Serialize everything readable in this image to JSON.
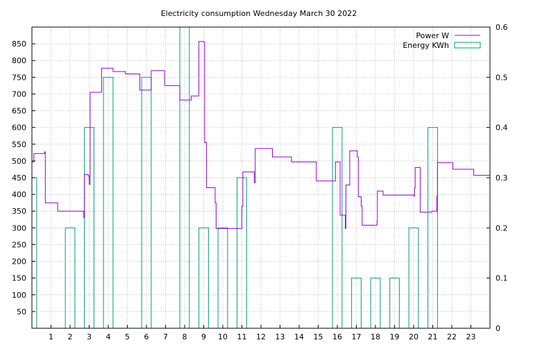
{
  "chart_data": {
    "type": "line",
    "title": "Electricity consumption Wednesday March 30 2022",
    "xlabel": "",
    "ylabel": "",
    "y2label": "",
    "grid": true,
    "legend_position": "top-right",
    "xlim": [
      0,
      24
    ],
    "x_ticks": [
      1,
      2,
      3,
      4,
      5,
      6,
      7,
      8,
      9,
      10,
      11,
      12,
      13,
      14,
      15,
      16,
      17,
      18,
      19,
      20,
      21,
      22,
      23
    ],
    "ylim": [
      0,
      900
    ],
    "y_ticks": [
      50,
      100,
      150,
      200,
      250,
      300,
      350,
      400,
      450,
      500,
      550,
      600,
      650,
      700,
      750,
      800,
      850
    ],
    "y2lim": [
      0,
      0.6
    ],
    "y2_ticks": [
      0,
      0.1,
      0.2,
      0.3,
      0.4,
      0.5,
      0.6
    ],
    "series": [
      {
        "name": "Power W",
        "axis": "left",
        "style": "steps",
        "color": "#9400d3",
        "points": [
          [
            0.0,
            497
          ],
          [
            0.1,
            522
          ],
          [
            0.65,
            522
          ],
          [
            0.66,
            527
          ],
          [
            0.7,
            375
          ],
          [
            1.3,
            375
          ],
          [
            1.35,
            350
          ],
          [
            2.7,
            350
          ],
          [
            2.72,
            330
          ],
          [
            2.75,
            460
          ],
          [
            2.95,
            455
          ],
          [
            3.0,
            430
          ],
          [
            3.05,
            705
          ],
          [
            3.6,
            705
          ],
          [
            3.65,
            777
          ],
          [
            4.2,
            777
          ],
          [
            4.25,
            767
          ],
          [
            4.85,
            767
          ],
          [
            4.9,
            760
          ],
          [
            5.6,
            760
          ],
          [
            5.65,
            712
          ],
          [
            6.2,
            712
          ],
          [
            6.25,
            770
          ],
          [
            6.9,
            770
          ],
          [
            6.95,
            725
          ],
          [
            7.7,
            725
          ],
          [
            7.75,
            682
          ],
          [
            8.3,
            682
          ],
          [
            8.35,
            694
          ],
          [
            8.7,
            694
          ],
          [
            8.75,
            857
          ],
          [
            9.0,
            855
          ],
          [
            9.05,
            555
          ],
          [
            9.15,
            420
          ],
          [
            9.55,
            420
          ],
          [
            9.6,
            375
          ],
          [
            9.65,
            298
          ],
          [
            10.95,
            298
          ],
          [
            11.0,
            365
          ],
          [
            11.05,
            467
          ],
          [
            11.6,
            467
          ],
          [
            11.65,
            435
          ],
          [
            11.7,
            537
          ],
          [
            12.55,
            537
          ],
          [
            12.6,
            512
          ],
          [
            13.55,
            512
          ],
          [
            13.6,
            497
          ],
          [
            14.85,
            497
          ],
          [
            14.9,
            440
          ],
          [
            15.85,
            440
          ],
          [
            15.9,
            497
          ],
          [
            16.1,
            497
          ],
          [
            16.15,
            338
          ],
          [
            16.4,
            338
          ],
          [
            16.42,
            298
          ],
          [
            16.45,
            428
          ],
          [
            16.6,
            428
          ],
          [
            16.65,
            530
          ],
          [
            17.0,
            530
          ],
          [
            17.05,
            512
          ],
          [
            17.1,
            393
          ],
          [
            17.2,
            393
          ],
          [
            17.25,
            365
          ],
          [
            17.3,
            308
          ],
          [
            18.05,
            308
          ],
          [
            18.08,
            320
          ],
          [
            18.1,
            410
          ],
          [
            18.35,
            410
          ],
          [
            18.4,
            398
          ],
          [
            19.95,
            398
          ],
          [
            20.0,
            395
          ],
          [
            20.05,
            420
          ],
          [
            20.08,
            480
          ],
          [
            20.3,
            480
          ],
          [
            20.35,
            347
          ],
          [
            20.9,
            347
          ],
          [
            20.95,
            350
          ],
          [
            21.2,
            350
          ],
          [
            21.22,
            395
          ],
          [
            21.25,
            495
          ],
          [
            22.0,
            495
          ],
          [
            22.05,
            475
          ],
          [
            23.1,
            475
          ],
          [
            23.15,
            457
          ],
          [
            24.0,
            457
          ]
        ]
      },
      {
        "name": "Energy KWh",
        "axis": "right",
        "style": "boxes",
        "color": "#009e73",
        "box_width": 0.5,
        "x": [
          0,
          1,
          2,
          3,
          4,
          5,
          6,
          7,
          8,
          9,
          10,
          11,
          12,
          13,
          14,
          15,
          16,
          17,
          18,
          19,
          20,
          21,
          22,
          23
        ],
        "values": [
          0.3,
          0,
          0.2,
          0.4,
          0.5,
          0,
          0.5,
          0,
          0.6,
          0.2,
          0.2,
          0.3,
          0,
          0,
          0,
          0,
          0.4,
          0.1,
          0.1,
          0.1,
          0.2,
          0.4,
          0,
          0
        ]
      }
    ]
  }
}
